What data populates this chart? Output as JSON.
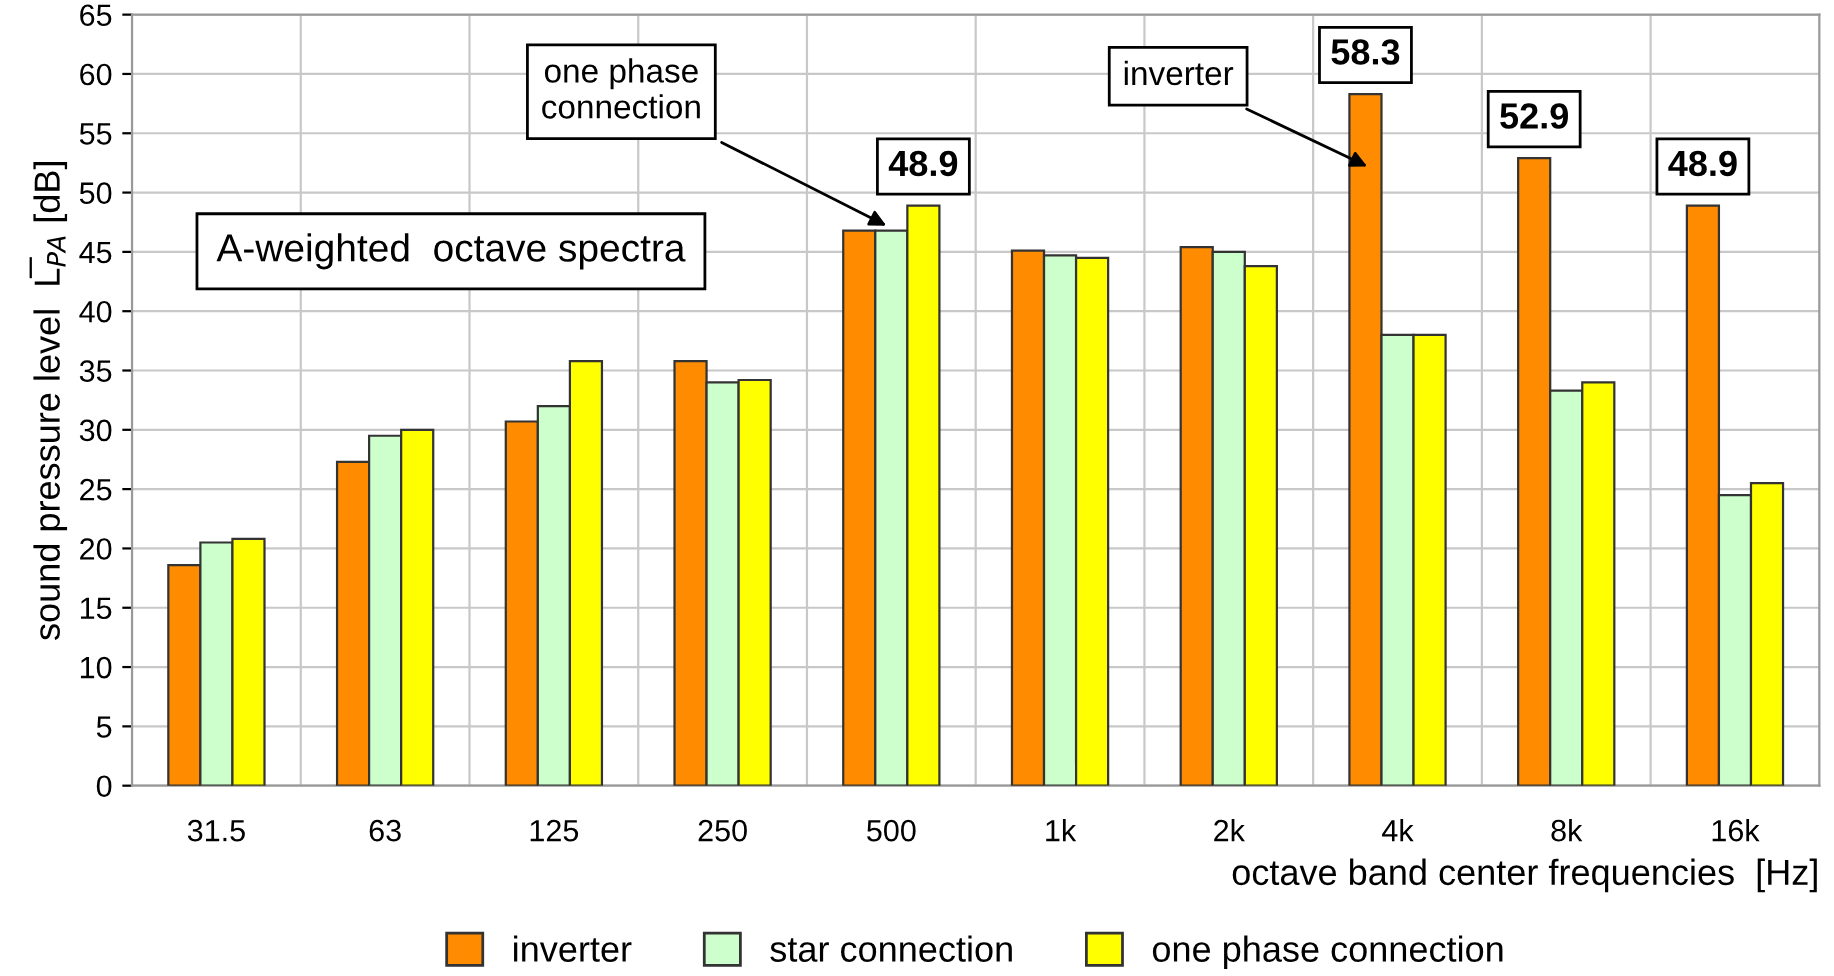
{
  "chart_data": {
    "type": "bar",
    "ylabel": "sound pressure level  L̅$_{PA}$ [dB]",
    "xlabel": "octave band center frequencies  [Hz]",
    "categories": [
      "31.5",
      "63",
      "125",
      "250",
      "500",
      "1k",
      "2k",
      "4k",
      "8k",
      "16k"
    ],
    "series": [
      {
        "name": "inverter",
        "color": "#ff8c00",
        "values": [
          18.6,
          27.3,
          30.7,
          35.8,
          46.8,
          45.1,
          45.4,
          58.3,
          52.9,
          48.9
        ],
        "value_labels": [
          null,
          null,
          null,
          null,
          null,
          null,
          null,
          "58.3",
          "52.9",
          "48.9"
        ]
      },
      {
        "name": "star connection",
        "color": "#ccffcc",
        "values": [
          20.5,
          29.5,
          32.0,
          34.0,
          46.8,
          44.7,
          45.0,
          38.0,
          33.3,
          24.5
        ]
      },
      {
        "name": "one phase connection",
        "color": "#ffff00",
        "values": [
          20.8,
          30.0,
          35.8,
          34.2,
          48.9,
          44.5,
          43.8,
          38.0,
          34.0,
          25.5
        ],
        "value_labels": [
          null,
          null,
          null,
          null,
          "48.9",
          null,
          null,
          null,
          null,
          null
        ]
      }
    ],
    "ylim": [
      0,
      65
    ],
    "yticks": [
      0,
      5,
      10,
      15,
      20,
      25,
      30,
      35,
      40,
      45,
      50,
      55,
      60,
      65
    ],
    "grid": true,
    "legend": "bottom",
    "annotations": [
      "A-weighted  octave spectra",
      {
        "text": "one phase\nconnection",
        "x": "500",
        "y": 47
      },
      "inverter"
    ]
  }
}
